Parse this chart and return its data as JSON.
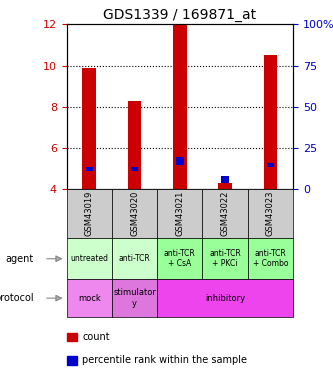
{
  "title": "GDS1339 / 169871_at",
  "samples": [
    "GSM43019",
    "GSM43020",
    "GSM43021",
    "GSM43022",
    "GSM43023"
  ],
  "count_bottom": [
    4.0,
    4.0,
    4.0,
    4.0,
    4.0
  ],
  "count_top": [
    9.9,
    8.3,
    12.0,
    4.3,
    10.5
  ],
  "percentile_bottom": [
    4.9,
    4.9,
    5.2,
    4.3,
    5.1
  ],
  "percentile_top": [
    5.1,
    5.1,
    5.55,
    4.65,
    5.3
  ],
  "ylim": [
    4,
    12
  ],
  "yticks_left": [
    4,
    6,
    8,
    10,
    12
  ],
  "yticks_right": [
    "0",
    "25",
    "50",
    "75",
    "100%"
  ],
  "yticks_right_positions": [
    4,
    6,
    8,
    10,
    12
  ],
  "bar_color": "#cc0000",
  "percentile_color": "#0000cc",
  "agent_labels": [
    "untreated",
    "anti-TCR",
    "anti-TCR\n+ CsA",
    "anti-TCR\n+ PKCi",
    "anti-TCR\n+ Combo"
  ],
  "agent_colors": [
    "#ccffcc",
    "#ccffcc",
    "#99ff99",
    "#99ff99",
    "#99ff99"
  ],
  "protocol_mock_color": "#ee88ee",
  "protocol_stim_color": "#dd77dd",
  "protocol_inhib_color": "#ee44ee",
  "sample_bg_color": "#cccccc",
  "left_tick_color": "#cc0000",
  "right_tick_color": "#0000cc"
}
